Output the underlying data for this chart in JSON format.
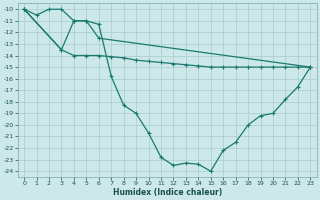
{
  "title": "",
  "xlabel": "Humidex (Indice chaleur)",
  "ylabel": "",
  "bg_color": "#cce8e8",
  "grid_color": "#aacccc",
  "line_color": "#1a7a6e",
  "x_ticks": [
    0,
    1,
    2,
    3,
    4,
    5,
    6,
    7,
    8,
    9,
    10,
    11,
    12,
    13,
    14,
    15,
    16,
    17,
    18,
    19,
    20,
    21,
    22,
    23
  ],
  "y_ticks": [
    -10,
    -11,
    -12,
    -13,
    -14,
    -15,
    -16,
    -17,
    -18,
    -19,
    -20,
    -21,
    -22,
    -23,
    -24
  ],
  "xlim": [
    -0.5,
    23.5
  ],
  "ylim": [
    -24.5,
    -9.5
  ],
  "line1_x": [
    0,
    1,
    2,
    3,
    4,
    5,
    6,
    7,
    8,
    9,
    10,
    11,
    12,
    13,
    14,
    15,
    16,
    17,
    18,
    19,
    20,
    21,
    22,
    23
  ],
  "line1_y": [
    -10,
    -10.5,
    -10,
    -10,
    -11,
    -11,
    -11.3,
    -15.8,
    -18.3,
    -19.0,
    -20.7,
    -22.8,
    -23.5,
    -23.3,
    -23.4,
    -24.0,
    -22.2,
    -21.5,
    -20.0,
    -19.2,
    -19.0,
    -17.8,
    -16.7,
    -15.0
  ],
  "line2_x": [
    0,
    3,
    4,
    5,
    6,
    23
  ],
  "line2_y": [
    -10,
    -13.5,
    -11,
    -11,
    -12.5,
    -15.0
  ],
  "line3_x": [
    0,
    3,
    4,
    5,
    6,
    7,
    8,
    9,
    10,
    11,
    12,
    13,
    14,
    15,
    16,
    17,
    18,
    19,
    20,
    21,
    22,
    23
  ],
  "line3_y": [
    -10,
    -13.5,
    -14,
    -14,
    -14,
    -14.1,
    -14.2,
    -14.4,
    -14.5,
    -14.6,
    -14.7,
    -14.8,
    -14.9,
    -15.0,
    -15.0,
    -15.0,
    -15.0,
    -15.0,
    -15.0,
    -15.0,
    -15.0,
    -15.0
  ]
}
